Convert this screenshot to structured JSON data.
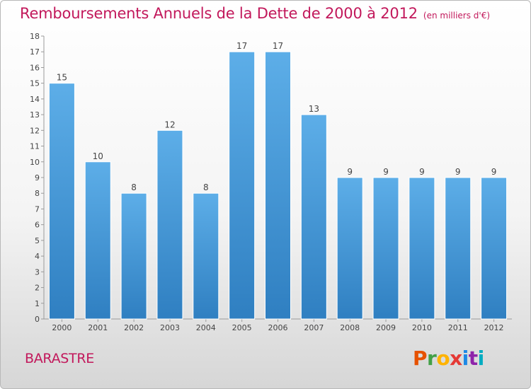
{
  "header": {
    "title": "Remboursements Annuels de la Dette de 2000 à 2012",
    "unit": "(en milliers d'€)"
  },
  "footer": {
    "place": "BARASTRE",
    "brand": "Proxiti",
    "brand_colors": [
      "#e65100",
      "#43a047",
      "#ffb300",
      "#e53935",
      "#1e88e5",
      "#8e24aa",
      "#00acc1"
    ]
  },
  "chart_data": {
    "type": "bar",
    "categories": [
      "2000",
      "2001",
      "2002",
      "2003",
      "2004",
      "2005",
      "2006",
      "2007",
      "2008",
      "2009",
      "2010",
      "2011",
      "2012"
    ],
    "values": [
      15,
      10,
      8,
      12,
      8,
      17,
      17,
      13,
      9,
      9,
      9,
      9,
      9
    ],
    "title": "Remboursements Annuels de la Dette de 2000 à 2012",
    "ylim": [
      0,
      18
    ],
    "yticks": [
      0,
      1,
      2,
      3,
      4,
      5,
      6,
      7,
      8,
      9,
      10,
      11,
      12,
      13,
      14,
      15,
      16,
      17,
      18
    ],
    "grid": false,
    "data_labels": true,
    "bar_color_top": "#5daee8",
    "bar_color_bottom": "#2f7fc1"
  }
}
